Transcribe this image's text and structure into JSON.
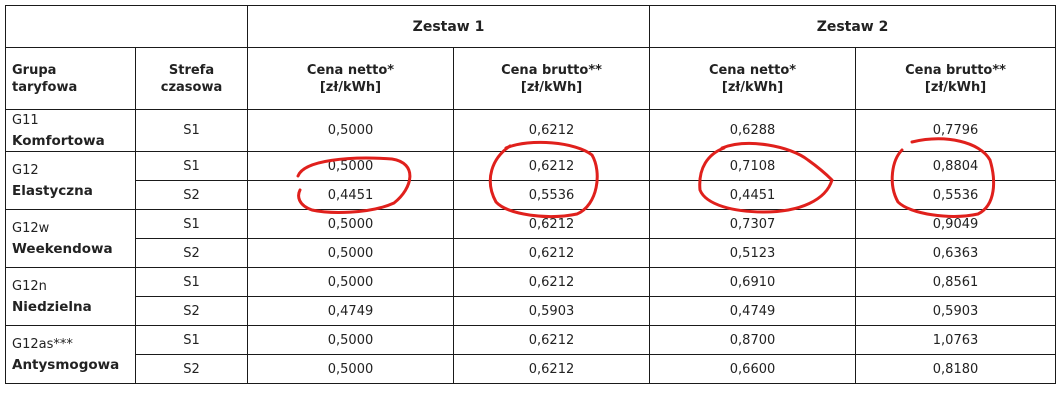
{
  "table": {
    "sets": [
      "Zestaw 1",
      "Zestaw 2"
    ],
    "headers": {
      "group": [
        "Grupa",
        "taryfowa"
      ],
      "zone": [
        "Strefa",
        "czasowa"
      ],
      "net": [
        "Cena netto*",
        "[zł/kWh]"
      ],
      "gross": [
        "Cena brutto**",
        "[zł/kWh]"
      ]
    },
    "groups": [
      {
        "code": "G11",
        "name": "Komfortowa",
        "rows": [
          {
            "zone": "S1",
            "z1_net": "0,5000",
            "z1_gross": "0,6212",
            "z2_net": "0,6288",
            "z2_gross": "0,7796"
          }
        ]
      },
      {
        "code": "G12",
        "name": "Elastyczna",
        "rows": [
          {
            "zone": "S1",
            "z1_net": "0,5000",
            "z1_gross": "0,6212",
            "z2_net": "0,7108",
            "z2_gross": "0,8804"
          },
          {
            "zone": "S2",
            "z1_net": "0,4451",
            "z1_gross": "0,5536",
            "z2_net": "0,4451",
            "z2_gross": "0,5536"
          }
        ]
      },
      {
        "code": "G12w",
        "name": "Weekendowa",
        "rows": [
          {
            "zone": "S1",
            "z1_net": "0,5000",
            "z1_gross": "0,6212",
            "z2_net": "0,7307",
            "z2_gross": "0,9049"
          },
          {
            "zone": "S2",
            "z1_net": "0,5000",
            "z1_gross": "0,6212",
            "z2_net": "0,5123",
            "z2_gross": "0,6363"
          }
        ]
      },
      {
        "code": "G12n",
        "name": "Niedzielna",
        "rows": [
          {
            "zone": "S1",
            "z1_net": "0,5000",
            "z1_gross": "0,6212",
            "z2_net": "0,6910",
            "z2_gross": "0,8561"
          },
          {
            "zone": "S2",
            "z1_net": "0,4749",
            "z1_gross": "0,5903",
            "z2_net": "0,4749",
            "z2_gross": "0,5903"
          }
        ]
      },
      {
        "code": "G12as***",
        "name": "Antysmogowa",
        "rows": [
          {
            "zone": "S1",
            "z1_net": "0,5000",
            "z1_gross": "0,6212",
            "z2_net": "0,8700",
            "z2_gross": "1,0763"
          },
          {
            "zone": "S2",
            "z1_net": "0,5000",
            "z1_gross": "0,6212",
            "z2_net": "0,6600",
            "z2_gross": "0,8180"
          }
        ]
      }
    ]
  },
  "annotations": {
    "color": "#e0201c"
  }
}
